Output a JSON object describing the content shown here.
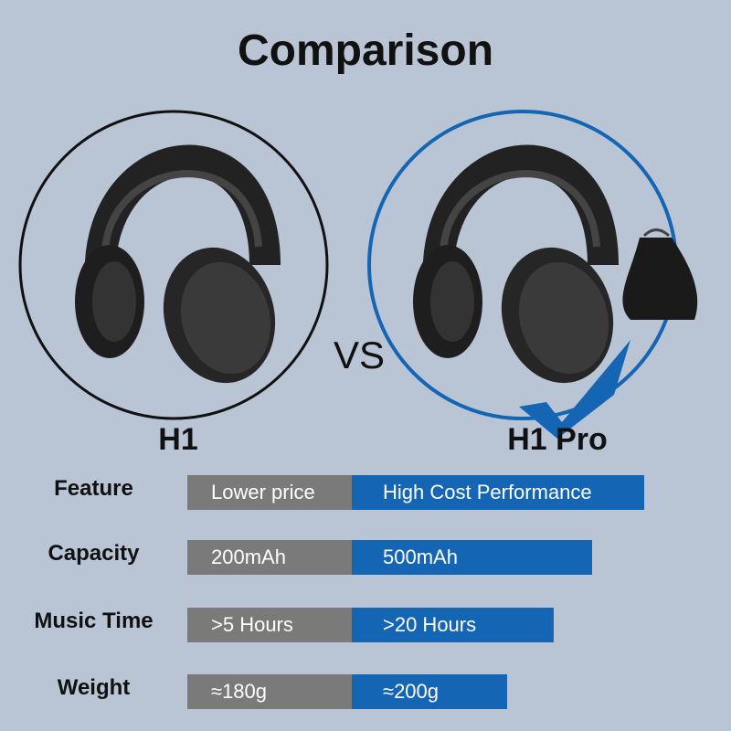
{
  "title": "Comparison",
  "versus": "VS",
  "products": [
    "H1",
    "H1 Pro"
  ],
  "rows": [
    {
      "label": "Feature",
      "h1": "Lower price",
      "h1_pro": "High Cost Performance"
    },
    {
      "label": "Capacity",
      "h1": "200mAh",
      "h1_pro": "500mAh"
    },
    {
      "label": "Music Time",
      "h1": ">5 Hours",
      "h1_pro": ">20 Hours"
    },
    {
      "label": "Weight",
      "h1": "≈180g",
      "h1_pro": "≈200g"
    }
  ]
}
